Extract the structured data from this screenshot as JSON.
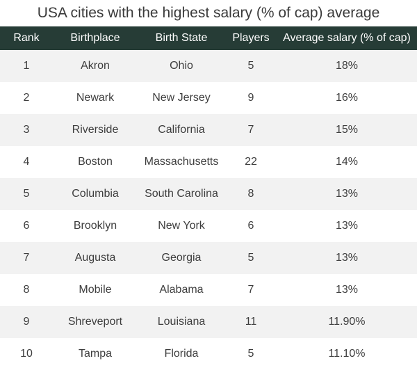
{
  "title": "USA cities with the highest salary (% of cap) average",
  "table": {
    "headers": {
      "rank": "Rank",
      "birthplace": "Birthplace",
      "state": "Birth State",
      "players": "Players",
      "salary": "Average salary (% of cap)"
    },
    "rows": [
      {
        "rank": "1",
        "birthplace": "Akron",
        "state": "Ohio",
        "players": "5",
        "salary": "18%"
      },
      {
        "rank": "2",
        "birthplace": "Newark",
        "state": "New Jersey",
        "players": "9",
        "salary": "16%"
      },
      {
        "rank": "3",
        "birthplace": "Riverside",
        "state": "California",
        "players": "7",
        "salary": "15%"
      },
      {
        "rank": "4",
        "birthplace": "Boston",
        "state": "Massachusetts",
        "players": "22",
        "salary": "14%"
      },
      {
        "rank": "5",
        "birthplace": "Columbia",
        "state": "South Carolina",
        "players": "8",
        "salary": "13%"
      },
      {
        "rank": "6",
        "birthplace": "Brooklyn",
        "state": "New York",
        "players": "6",
        "salary": "13%"
      },
      {
        "rank": "7",
        "birthplace": "Augusta",
        "state": "Georgia",
        "players": "5",
        "salary": "13%"
      },
      {
        "rank": "8",
        "birthplace": "Mobile",
        "state": "Alabama",
        "players": "7",
        "salary": "13%"
      },
      {
        "rank": "9",
        "birthplace": "Shreveport",
        "state": "Louisiana",
        "players": "11",
        "salary": "11.90%"
      },
      {
        "rank": "10",
        "birthplace": "Tampa",
        "state": "Florida",
        "players": "5",
        "salary": "11.10%"
      }
    ]
  }
}
